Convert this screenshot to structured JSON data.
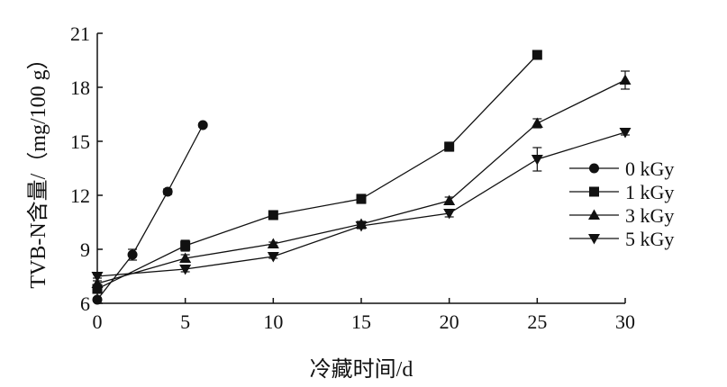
{
  "chart_data": {
    "type": "line",
    "title": "",
    "xlabel": "冷藏时间/d",
    "ylabel": "TVB-N含量/（mg/100 g）",
    "xlim": [
      0,
      30
    ],
    "ylim": [
      6,
      21
    ],
    "x_ticks": [
      0,
      5,
      10,
      15,
      20,
      25,
      30
    ],
    "y_ticks": [
      6,
      9,
      12,
      15,
      18,
      21
    ],
    "x_tick_labels": [
      "0",
      "5",
      "10",
      "15",
      "20",
      "25",
      "30"
    ],
    "y_tick_labels": [
      "6",
      "9",
      "12",
      "15",
      "18",
      "21"
    ],
    "grid": false,
    "legend_position": "right",
    "series": [
      {
        "name": "0 kGy",
        "marker": "circle",
        "x": [
          0,
          2,
          4,
          6
        ],
        "y": [
          6.2,
          8.7,
          12.2,
          15.9
        ],
        "err": [
          0.1,
          0.3,
          0.15,
          0.1
        ]
      },
      {
        "name": "1 kGy",
        "marker": "square",
        "x": [
          0,
          5,
          10,
          15,
          20,
          25
        ],
        "y": [
          6.8,
          9.2,
          10.9,
          11.8,
          14.7,
          19.8
        ],
        "err": [
          0.15,
          0.3,
          0.1,
          0.25,
          0.25,
          0.1
        ]
      },
      {
        "name": "3 kGy",
        "marker": "triangle-up",
        "x": [
          0,
          5,
          10,
          15,
          20,
          25,
          30
        ],
        "y": [
          7.1,
          8.5,
          9.3,
          10.4,
          11.7,
          16.0,
          18.4
        ],
        "err": [
          0.15,
          0.2,
          0.1,
          0.15,
          0.2,
          0.25,
          0.5
        ]
      },
      {
        "name": "5 kGy",
        "marker": "triangle-down",
        "x": [
          0,
          5,
          10,
          15,
          20,
          25,
          30
        ],
        "y": [
          7.5,
          7.9,
          8.6,
          10.3,
          11.0,
          14.0,
          15.5
        ],
        "err": [
          0.1,
          0.15,
          0.1,
          0.15,
          0.2,
          0.65,
          0.15
        ]
      }
    ]
  }
}
